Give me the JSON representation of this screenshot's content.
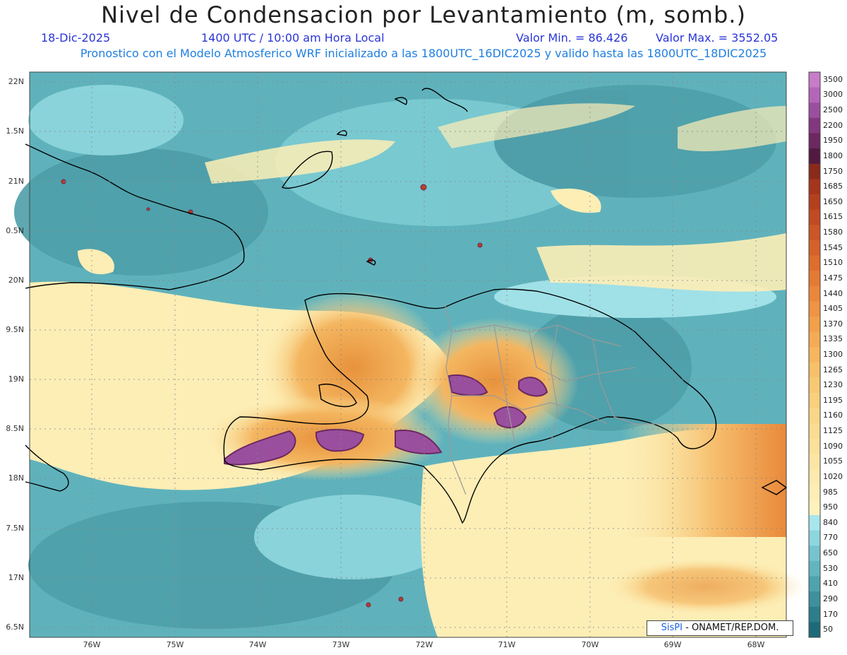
{
  "header": {
    "title": "Nivel de Condensacion por Levantamiento (m, somb.)",
    "date": "18-Dic-2025",
    "time": "1400 UTC / 10:00 am Hora Local",
    "min_label": "Valor Min. = 86.426",
    "max_label": "Valor Max. = 3552.05",
    "forecast": "Pronostico con el Modelo Atmosferico WRF inicializado a las 1800UTC_16DIC2025 y valido hasta las  1800UTC_18DIC2025"
  },
  "axes": {
    "lat_labels": [
      "22N",
      "1.5N",
      "21N",
      "0.5N",
      "20N",
      "9.5N",
      "19N",
      "8.5N",
      "18N",
      "7.5N",
      "17N",
      "6.5N"
    ],
    "lon_labels": [
      "76W",
      "75W",
      "74W",
      "73W",
      "72W",
      "71W",
      "70W",
      "69W",
      "68W"
    ]
  },
  "colorbar": {
    "labels": [
      "3500",
      "3000",
      "2500",
      "2200",
      "1950",
      "1800",
      "1750",
      "1685",
      "1650",
      "1615",
      "1580",
      "1545",
      "1510",
      "1475",
      "1440",
      "1405",
      "1370",
      "1335",
      "1300",
      "1265",
      "1230",
      "1195",
      "1160",
      "1125",
      "1090",
      "1055",
      "1020",
      "985",
      "950",
      "840",
      "770",
      "650",
      "530",
      "410",
      "290",
      "170",
      "50"
    ],
    "colors": [
      "#c77dc8",
      "#b565b8",
      "#9a4f9e",
      "#83377f",
      "#6c2860",
      "#521a40",
      "#8a2a1a",
      "#a5351c",
      "#b3401e",
      "#c04b22",
      "#cb5726",
      "#d4622a",
      "#dd6e2e",
      "#e47a34",
      "#ea873b",
      "#ef9442",
      "#f2a04a",
      "#f4ab54",
      "#f6b65e",
      "#f7c06a",
      "#f8c974",
      "#f9d07e",
      "#fad689",
      "#fbdc93",
      "#fbe19c",
      "#fce6a6",
      "#fdeaae",
      "#fdeeb6",
      "#fdf2bd",
      "#a8e6ec",
      "#8ed6de",
      "#76c5ce",
      "#62b5bf",
      "#4fa3ae",
      "#3d909c",
      "#2d7d8a",
      "#1f6a78"
    ]
  },
  "credit": {
    "brand": "SisPI",
    "org": " - ONAMET/REP.DOM."
  }
}
